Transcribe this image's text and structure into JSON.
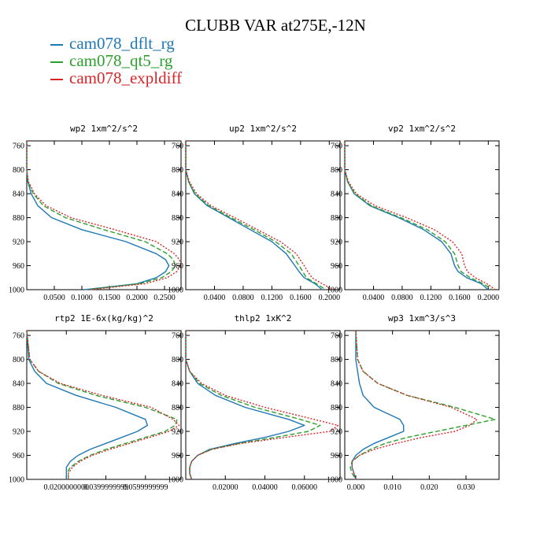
{
  "title": "CLUBB VAR at275E,-12N",
  "legend": [
    {
      "label": "cam078_dflt_rg",
      "color": "#1f77b4"
    },
    {
      "label": "cam078_qt5_rg",
      "color": "#2ca02c"
    },
    {
      "label": "cam078_expldiff",
      "color": "#d62728"
    }
  ],
  "chart_data": [
    {
      "type": "line",
      "title": "wp2  1xm^2/s^2",
      "xlim": [
        0,
        0.28
      ],
      "ylim": [
        1000,
        752
      ],
      "xticks": [
        0.05,
        0.1,
        0.15,
        0.2,
        0.25
      ],
      "xtick_labels": [
        "0.0500",
        "0.1000",
        "0.1500",
        "0.2000",
        "0.2500"
      ],
      "yticks": [
        760,
        800,
        840,
        880,
        920,
        960,
        1000
      ],
      "y": [
        752,
        800,
        820,
        840,
        860,
        880,
        900,
        920,
        940,
        950,
        960,
        970,
        980,
        990,
        1000
      ],
      "series": [
        {
          "name": "cam078_dflt_rg",
          "color": "#1f77b4",
          "dash": "",
          "x": [
            0.0,
            0.0,
            0.002,
            0.008,
            0.02,
            0.045,
            0.1,
            0.18,
            0.235,
            0.252,
            0.258,
            0.252,
            0.235,
            0.2,
            0.105
          ]
        },
        {
          "name": "cam078_qt5_rg",
          "color": "#2ca02c",
          "dash": "6,3",
          "x": [
            0.0,
            0.0,
            0.002,
            0.012,
            0.03,
            0.07,
            0.14,
            0.215,
            0.255,
            0.266,
            0.27,
            0.262,
            0.245,
            0.205,
            0.11
          ]
        },
        {
          "name": "cam078_expldiff",
          "color": "#d62728",
          "dash": "2,2",
          "x": [
            0.0,
            0.0,
            0.003,
            0.014,
            0.035,
            0.08,
            0.16,
            0.235,
            0.268,
            0.277,
            0.28,
            0.272,
            0.255,
            0.215,
            0.115
          ]
        }
      ]
    },
    {
      "type": "line",
      "title": "up2  1xm^2/s^2",
      "xlim": [
        0,
        0.215
      ],
      "ylim": [
        1000,
        752
      ],
      "xticks": [
        0.04,
        0.08,
        0.12,
        0.16,
        0.2
      ],
      "xtick_labels": [
        "0.0400",
        "0.0800",
        "0.1200",
        "0.1600",
        "0.2000"
      ],
      "yticks": [
        760,
        800,
        840,
        880,
        920,
        960,
        1000
      ],
      "y": [
        752,
        800,
        820,
        840,
        860,
        880,
        900,
        920,
        940,
        960,
        970,
        980,
        990,
        1000
      ],
      "series": [
        {
          "name": "cam078_dflt_rg",
          "color": "#1f77b4",
          "dash": "",
          "x": [
            0.0,
            0.0,
            0.004,
            0.012,
            0.03,
            0.06,
            0.09,
            0.12,
            0.14,
            0.152,
            0.158,
            0.165,
            0.18,
            0.19
          ]
        },
        {
          "name": "cam078_qt5_rg",
          "color": "#2ca02c",
          "dash": "6,3",
          "x": [
            0.0,
            0.0,
            0.004,
            0.013,
            0.032,
            0.063,
            0.095,
            0.125,
            0.147,
            0.158,
            0.163,
            0.168,
            0.182,
            0.195
          ]
        },
        {
          "name": "cam078_expldiff",
          "color": "#d62728",
          "dash": "2,2",
          "x": [
            0.0,
            0.0,
            0.005,
            0.015,
            0.035,
            0.068,
            0.1,
            0.132,
            0.154,
            0.165,
            0.17,
            0.176,
            0.19,
            0.205
          ]
        }
      ]
    },
    {
      "type": "line",
      "title": "vp2  1xm^2/s^2",
      "xlim": [
        0,
        0.215
      ],
      "ylim": [
        1000,
        752
      ],
      "xticks": [
        0.04,
        0.08,
        0.12,
        0.16,
        0.2
      ],
      "xtick_labels": [
        "0.0400",
        "0.0800",
        "0.1200",
        "0.1600",
        "0.2000"
      ],
      "yticks": [
        760,
        800,
        840,
        880,
        920,
        960,
        1000
      ],
      "y": [
        752,
        800,
        820,
        840,
        860,
        880,
        900,
        920,
        940,
        960,
        970,
        980,
        990,
        1000
      ],
      "series": [
        {
          "name": "cam078_dflt_rg",
          "color": "#1f77b4",
          "dash": "",
          "x": [
            0.0,
            0.0,
            0.004,
            0.013,
            0.035,
            0.075,
            0.11,
            0.135,
            0.148,
            0.153,
            0.158,
            0.17,
            0.19,
            0.2
          ]
        },
        {
          "name": "cam078_qt5_rg",
          "color": "#2ca02c",
          "dash": "6,3",
          "x": [
            0.0,
            0.0,
            0.004,
            0.014,
            0.037,
            0.078,
            0.115,
            0.14,
            0.153,
            0.158,
            0.162,
            0.175,
            0.193,
            0.205
          ]
        },
        {
          "name": "cam078_expldiff",
          "color": "#d62728",
          "dash": "2,2",
          "x": [
            0.0,
            0.0,
            0.005,
            0.016,
            0.042,
            0.086,
            0.125,
            0.15,
            0.163,
            0.167,
            0.171,
            0.182,
            0.198,
            0.21
          ]
        }
      ]
    },
    {
      "type": "line",
      "title": "rtp2  1E-6x(kg/kg)^2",
      "xlim": [
        0,
        0.078
      ],
      "ylim": [
        1000,
        752
      ],
      "xticks": [
        0.02,
        0.04,
        0.06
      ],
      "xtick_labels": [
        "0.0200000000",
        "0.0399999999",
        "0.0599999999"
      ],
      "yticks": [
        760,
        800,
        840,
        880,
        920,
        960,
        1000
      ],
      "y": [
        752,
        800,
        820,
        840,
        860,
        880,
        900,
        910,
        920,
        930,
        940,
        950,
        960,
        970,
        980,
        985,
        990,
        995,
        1000
      ],
      "series": [
        {
          "name": "cam078_dflt_rg",
          "color": "#1f77b4",
          "dash": "",
          "x": [
            0.0,
            0.001,
            0.004,
            0.01,
            0.025,
            0.045,
            0.06,
            0.061,
            0.056,
            0.048,
            0.04,
            0.032,
            0.026,
            0.022,
            0.02,
            0.02,
            0.02,
            0.02,
            0.02
          ]
        },
        {
          "name": "cam078_qt5_rg",
          "color": "#2ca02c",
          "dash": "6,3",
          "x": [
            0.0,
            0.0015,
            0.006,
            0.016,
            0.035,
            0.06,
            0.076,
            0.075,
            0.07,
            0.06,
            0.05,
            0.04,
            0.032,
            0.026,
            0.022,
            0.021,
            0.021,
            0.021,
            0.021
          ]
        },
        {
          "name": "cam078_expldiff",
          "color": "#d62728",
          "dash": "2,2",
          "x": [
            0.0,
            0.0015,
            0.006,
            0.017,
            0.038,
            0.063,
            0.074,
            0.077,
            0.072,
            0.062,
            0.052,
            0.042,
            0.033,
            0.027,
            0.023,
            0.022,
            0.021,
            0.021,
            0.021
          ]
        }
      ]
    },
    {
      "type": "line",
      "title": "thlp2  1xK^2",
      "xlim": [
        0,
        0.078
      ],
      "ylim": [
        1000,
        752
      ],
      "xticks": [
        0.02,
        0.04,
        0.06
      ],
      "xtick_labels": [
        "0.02000",
        "0.04000",
        "0.06000"
      ],
      "yticks": [
        760,
        800,
        840,
        880,
        920,
        960,
        1000
      ],
      "y": [
        752,
        800,
        820,
        840,
        860,
        880,
        900,
        910,
        920,
        930,
        940,
        950,
        960,
        970,
        980,
        990,
        1000
      ],
      "series": [
        {
          "name": "cam078_dflt_rg",
          "color": "#1f77b4",
          "dash": "",
          "x": [
            0.0,
            0.0,
            0.002,
            0.006,
            0.015,
            0.03,
            0.052,
            0.06,
            0.052,
            0.04,
            0.025,
            0.012,
            0.006,
            0.003,
            0.002,
            0.002,
            0.003
          ]
        },
        {
          "name": "cam078_qt5_rg",
          "color": "#2ca02c",
          "dash": "6,3",
          "x": [
            0.0,
            0.0,
            0.002,
            0.007,
            0.018,
            0.035,
            0.058,
            0.068,
            0.062,
            0.045,
            0.027,
            0.013,
            0.006,
            0.003,
            0.002,
            0.002,
            0.003
          ]
        },
        {
          "name": "cam078_expldiff",
          "color": "#d62728",
          "dash": "2,2",
          "x": [
            0.0,
            0.0,
            0.002,
            0.008,
            0.02,
            0.04,
            0.065,
            0.077,
            0.073,
            0.05,
            0.028,
            0.013,
            0.006,
            0.003,
            0.002,
            0.002,
            0.003
          ]
        }
      ]
    },
    {
      "type": "line",
      "title": "wp3  1xm^3/s^3",
      "xlim": [
        -0.003,
        0.039
      ],
      "ylim": [
        1000,
        752
      ],
      "xticks": [
        0.0,
        0.01,
        0.02,
        0.03
      ],
      "xtick_labels": [
        "0.000",
        "0.010",
        "0.020",
        "0.030"
      ],
      "yticks": [
        760,
        800,
        840,
        880,
        920,
        960,
        1000
      ],
      "y": [
        752,
        800,
        820,
        840,
        860,
        880,
        900,
        910,
        920,
        930,
        940,
        950,
        960,
        970,
        980,
        990,
        1000
      ],
      "series": [
        {
          "name": "cam078_dflt_rg",
          "color": "#1f77b4",
          "dash": "",
          "x": [
            0.0,
            0.0,
            0.0005,
            0.001,
            0.002,
            0.005,
            0.012,
            0.013,
            0.013,
            0.009,
            0.005,
            0.002,
            0.0,
            -0.001,
            -0.001,
            -0.0005,
            0.0
          ]
        },
        {
          "name": "cam078_qt5_rg",
          "color": "#2ca02c",
          "dash": "6,3",
          "x": [
            0.0,
            0.0005,
            0.002,
            0.006,
            0.014,
            0.027,
            0.038,
            0.03,
            0.022,
            0.014,
            0.008,
            0.004,
            0.001,
            -0.001,
            -0.0015,
            -0.001,
            0.0
          ]
        },
        {
          "name": "cam078_expldiff",
          "color": "#d62728",
          "dash": "2,2",
          "x": [
            0.0,
            0.0005,
            0.002,
            0.006,
            0.014,
            0.026,
            0.033,
            0.031,
            0.027,
            0.018,
            0.011,
            0.005,
            0.001,
            -0.001,
            -0.001,
            -0.0005,
            0.0
          ]
        }
      ]
    }
  ]
}
